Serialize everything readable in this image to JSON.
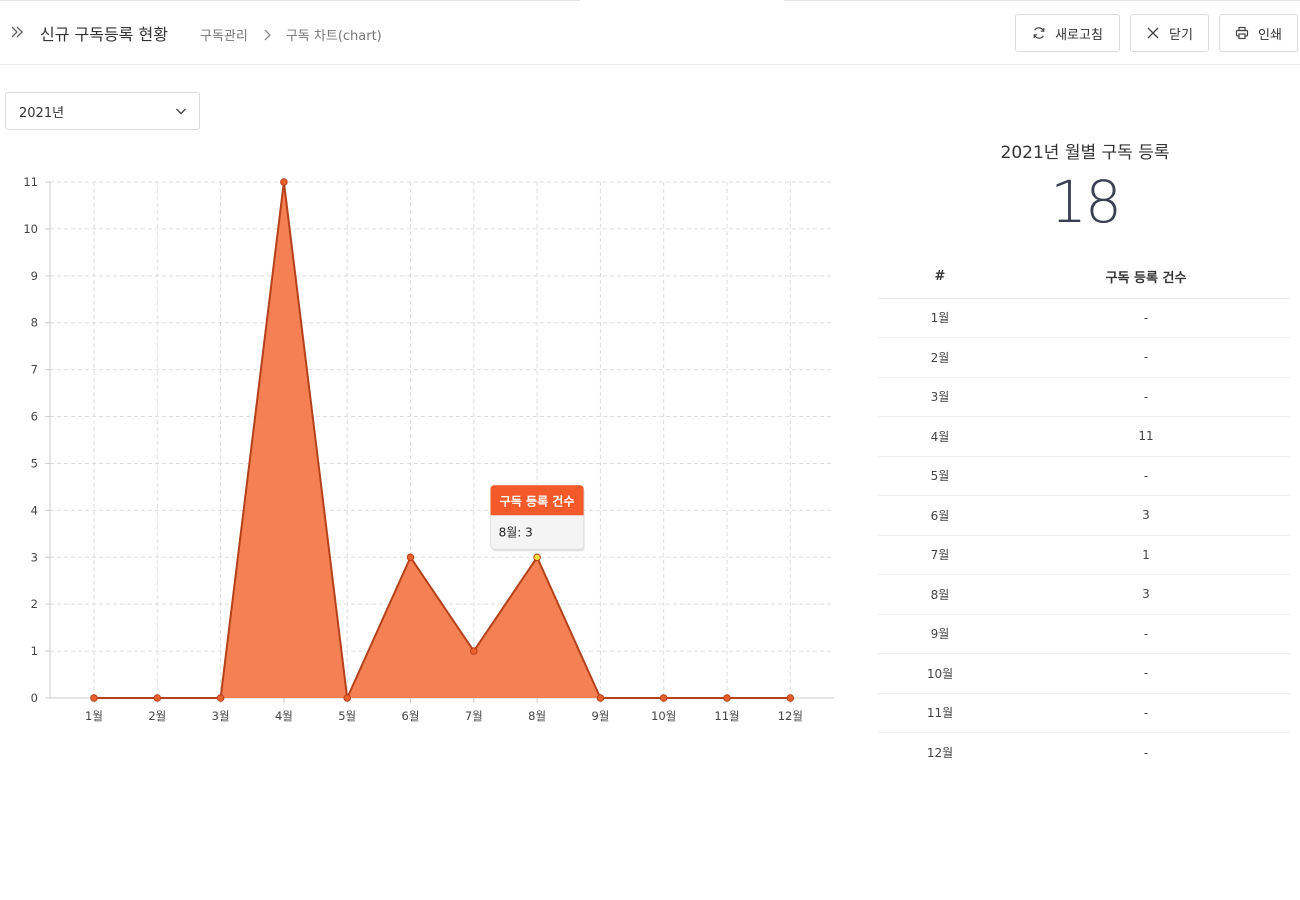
{
  "header": {
    "title": "신규 구독등록 현황",
    "breadcrumb": [
      "구독관리",
      "구독 차트(chart)"
    ],
    "buttons": {
      "refresh": "새로고침",
      "close": "닫기",
      "print": "인쇄"
    },
    "icons": {
      "menu": "double-chevron-right-icon",
      "refresh": "refresh-icon",
      "close": "close-icon",
      "print": "printer-icon"
    }
  },
  "year_select": {
    "value": "2021년"
  },
  "summary": {
    "title": "2021년 월별 구독 등록",
    "total": "18"
  },
  "table": {
    "headers": [
      "#",
      "구독 등록 건수"
    ],
    "rows": [
      {
        "month": "1월",
        "count": "-"
      },
      {
        "month": "2월",
        "count": "-"
      },
      {
        "month": "3월",
        "count": "-"
      },
      {
        "month": "4월",
        "count": "11"
      },
      {
        "month": "5월",
        "count": "-"
      },
      {
        "month": "6월",
        "count": "3"
      },
      {
        "month": "7월",
        "count": "1"
      },
      {
        "month": "8월",
        "count": "3"
      },
      {
        "month": "9월",
        "count": "-"
      },
      {
        "month": "10월",
        "count": "-"
      },
      {
        "month": "11월",
        "count": "-"
      },
      {
        "month": "12월",
        "count": "-"
      }
    ]
  },
  "chart_data": {
    "type": "area",
    "categories": [
      "1월",
      "2월",
      "3월",
      "4월",
      "5월",
      "6월",
      "7월",
      "8월",
      "9월",
      "10월",
      "11월",
      "12월"
    ],
    "series": [
      {
        "name": "구독 등록 건수",
        "values": [
          0,
          0,
          0,
          11,
          0,
          3,
          1,
          3,
          0,
          0,
          0,
          0
        ]
      }
    ],
    "ylim": [
      0,
      11
    ],
    "yticks": [
      0,
      1,
      2,
      3,
      4,
      5,
      6,
      7,
      8,
      9,
      10,
      11
    ],
    "grid": true,
    "colors": {
      "fill": "#f4794a",
      "line": "#b5411a",
      "tooltip_header": "#f4592a"
    },
    "tooltip": {
      "title": "구독 등록 건수",
      "text": "8월: 3",
      "index": 7
    }
  }
}
